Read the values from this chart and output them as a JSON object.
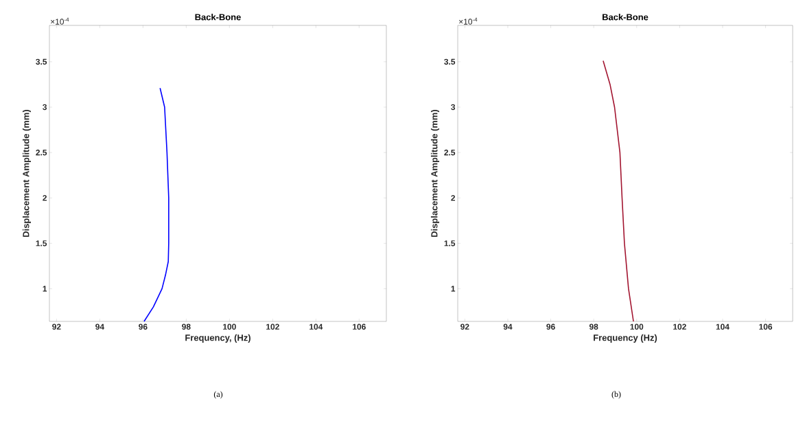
{
  "chart_data": [
    {
      "type": "line",
      "title": "Back-Bone",
      "xlabel": "Frequency,  (Hz)",
      "ylabel": "Displacement Amplitude (mm)",
      "annotations": [
        "×10$^{-4}$",
        "(a)"
      ],
      "series": [
        {
          "color": "#0000ff",
          "x": [
            96.05,
            96.48,
            96.88,
            97.04,
            97.17,
            97.19,
            97.19,
            97.11,
            97.0,
            96.79
          ],
          "values": [
            0.64,
            0.8,
            1.0,
            1.15,
            1.3,
            1.5,
            2.0,
            2.5,
            3.0,
            3.21
          ]
        }
      ],
      "xlim": [
        91.67,
        107.26
      ],
      "ylim": [
        0.64,
        3.9
      ],
      "xticks": [
        92,
        94,
        96,
        98,
        100,
        102,
        104,
        106
      ],
      "yticks": [
        1,
        1.5,
        2,
        2.5,
        3,
        3.5
      ]
    },
    {
      "type": "line",
      "title": "Back-Bone",
      "xlabel": "Frequency (Hz)",
      "ylabel": "Displacement Amplitude (mm)",
      "annotations": [
        "×10$^{-4}$",
        "(b)"
      ],
      "series": [
        {
          "color": "#a2142f",
          "x": [
            99.85,
            99.62,
            99.43,
            99.32,
            99.22,
            98.97,
            98.76,
            98.44
          ],
          "values": [
            0.64,
            1.0,
            1.5,
            2.0,
            2.5,
            3.0,
            3.25,
            3.51
          ]
        }
      ],
      "xlim": [
        91.67,
        107.26
      ],
      "ylim": [
        0.64,
        3.9
      ],
      "xticks": [
        92,
        94,
        96,
        98,
        100,
        102,
        104,
        106
      ],
      "yticks": [
        1,
        1.5,
        2,
        2.5,
        3,
        3.5
      ]
    }
  ]
}
